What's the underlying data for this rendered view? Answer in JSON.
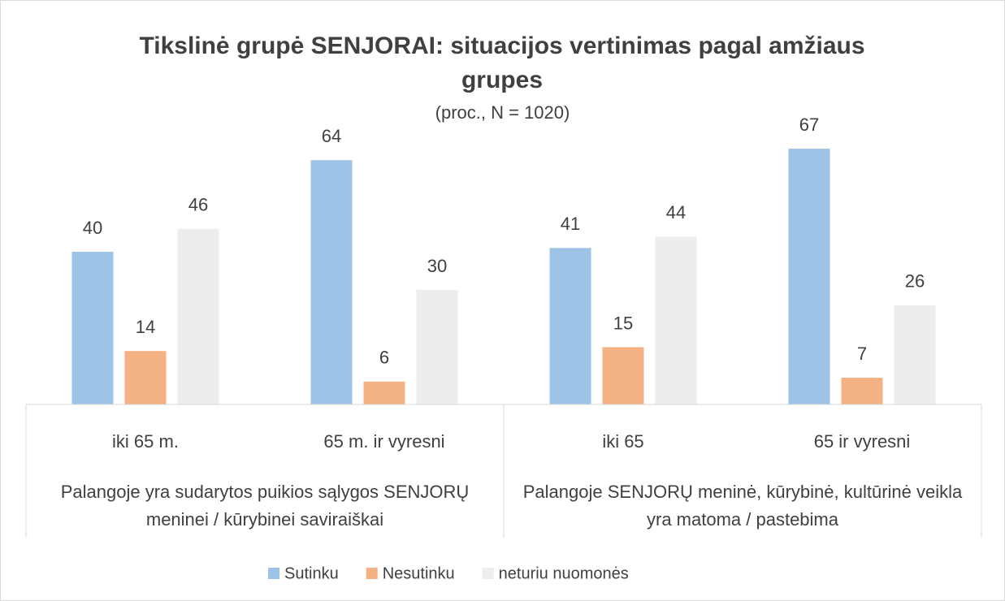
{
  "chart_data": {
    "type": "bar",
    "title": "Tikslinė grupė SENJORAI: situacijos vertinimas pagal amžiaus grupes",
    "subtitle": "(proc., N = 1020)",
    "categories": [
      "iki 65 m.",
      "65 m. ir vyresni",
      "iki 65",
      "65 ir vyresni"
    ],
    "groups": [
      "Palangoje yra sudarytos puikios sąlygos SENJORŲ meninei / kūrybinei saviraiškai",
      "Palangoje SENJORŲ meninė, kūrybinė, kultūrinė veikla yra matoma / pastebima"
    ],
    "series": [
      {
        "name": "Sutinku",
        "color": "#9dc3e6",
        "values": [
          40,
          64,
          41,
          67
        ]
      },
      {
        "name": "Nesutinku",
        "color": "#f4b183",
        "values": [
          14,
          6,
          15,
          7
        ]
      },
      {
        "name": "neturiu nuomonės",
        "color": "#ededed",
        "values": [
          46,
          30,
          44,
          26
        ]
      }
    ],
    "ylim": [
      0,
      70
    ],
    "legend": "bottom"
  }
}
